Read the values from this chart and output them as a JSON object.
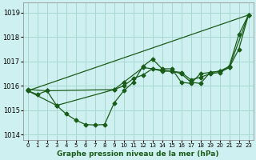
{
  "title": "Graphe pression niveau de la mer (hPa)",
  "bg_color": "#cff0f0",
  "grid_color": "#a8d8d0",
  "line_color": "#1a5c1a",
  "ylim": [
    1013.8,
    1019.4
  ],
  "yticks": [
    1014,
    1015,
    1016,
    1017,
    1018,
    1019
  ],
  "xlim": [
    -0.5,
    23.5
  ],
  "xticks": [
    0,
    1,
    2,
    3,
    4,
    5,
    6,
    7,
    8,
    9,
    10,
    11,
    12,
    13,
    14,
    15,
    16,
    17,
    18,
    19,
    20,
    21,
    22,
    23
  ],
  "series1_x": [
    0,
    1,
    2,
    3,
    4,
    5,
    6,
    7,
    8,
    9,
    10,
    11,
    12,
    13,
    14,
    15,
    16,
    17,
    18,
    19,
    20,
    21,
    22,
    23
  ],
  "series1_y": [
    1015.8,
    1015.65,
    1015.8,
    1015.2,
    1014.85,
    1014.6,
    1014.42,
    1014.4,
    1014.42,
    1015.3,
    1015.8,
    1016.15,
    1016.8,
    1017.1,
    1016.7,
    1016.7,
    1016.15,
    1016.1,
    1016.5,
    1016.55,
    1016.6,
    1016.8,
    1018.1,
    1018.9
  ],
  "series2_x": [
    0,
    2,
    9,
    10,
    11,
    12,
    13,
    14,
    15,
    16,
    17,
    18,
    19,
    20,
    21,
    23
  ],
  "series2_y": [
    1015.85,
    1015.8,
    1015.85,
    1016.0,
    1016.3,
    1016.45,
    1016.7,
    1016.6,
    1016.6,
    1016.55,
    1016.25,
    1016.35,
    1016.5,
    1016.55,
    1016.75,
    1018.9
  ],
  "series3_x": [
    0,
    23
  ],
  "series3_y": [
    1015.8,
    1018.9
  ],
  "series4_x": [
    0,
    3,
    9,
    10,
    12,
    14,
    15,
    16,
    17,
    18,
    19,
    20,
    21,
    22,
    23
  ],
  "series4_y": [
    1015.8,
    1015.2,
    1015.85,
    1016.15,
    1016.75,
    1016.65,
    1016.6,
    1016.5,
    1016.15,
    1016.1,
    1016.55,
    1016.6,
    1016.75,
    1017.5,
    1018.9
  ],
  "marker": "D",
  "markersize": 2.5,
  "linewidth": 0.9
}
